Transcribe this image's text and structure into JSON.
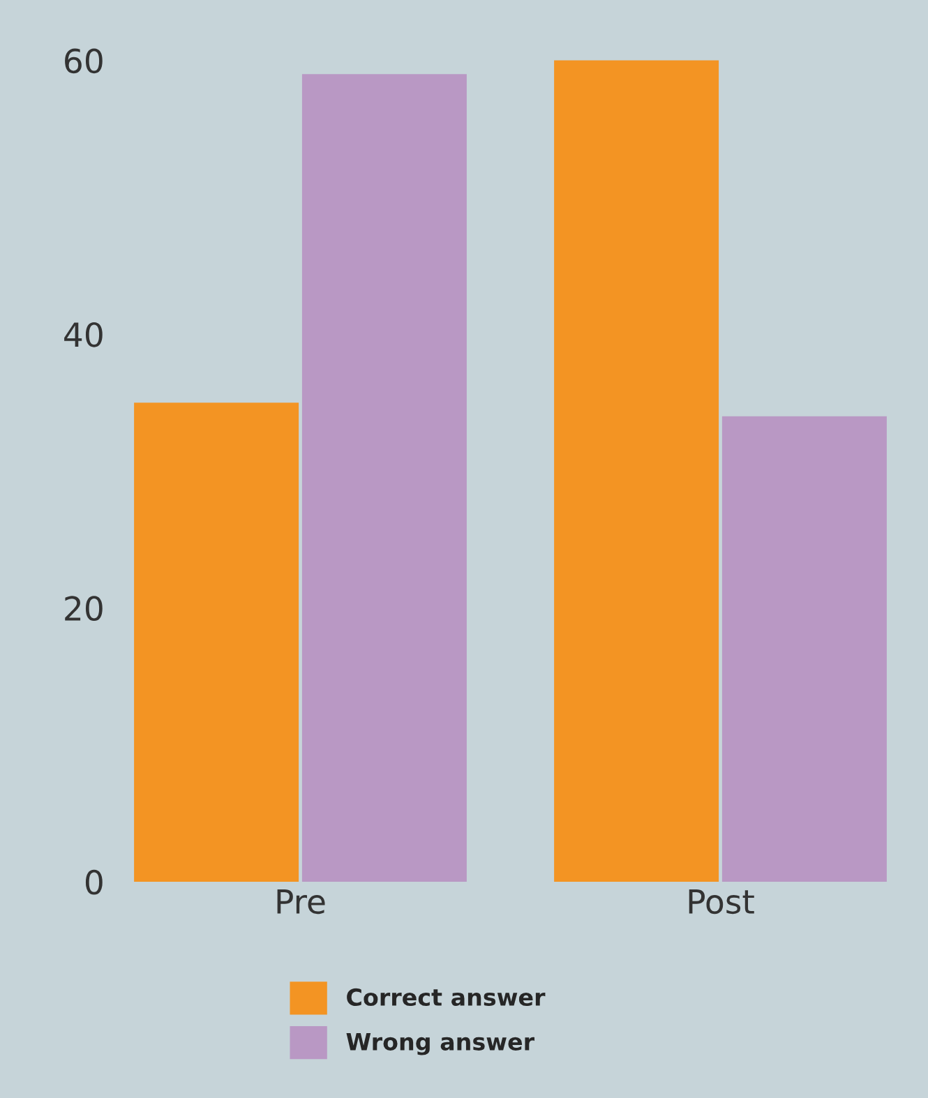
{
  "chart_data": {
    "type": "bar",
    "categories": [
      "Pre",
      "Post"
    ],
    "series": [
      {
        "name": "Correct answer",
        "color": "#f39423",
        "values": [
          35,
          60
        ]
      },
      {
        "name": "Wrong answer",
        "color": "#b998c4",
        "values": [
          59,
          34
        ]
      }
    ],
    "ylim": [
      0,
      60
    ],
    "yticks": [
      0,
      20,
      40,
      60
    ],
    "grid": false,
    "legend": "bottom"
  }
}
